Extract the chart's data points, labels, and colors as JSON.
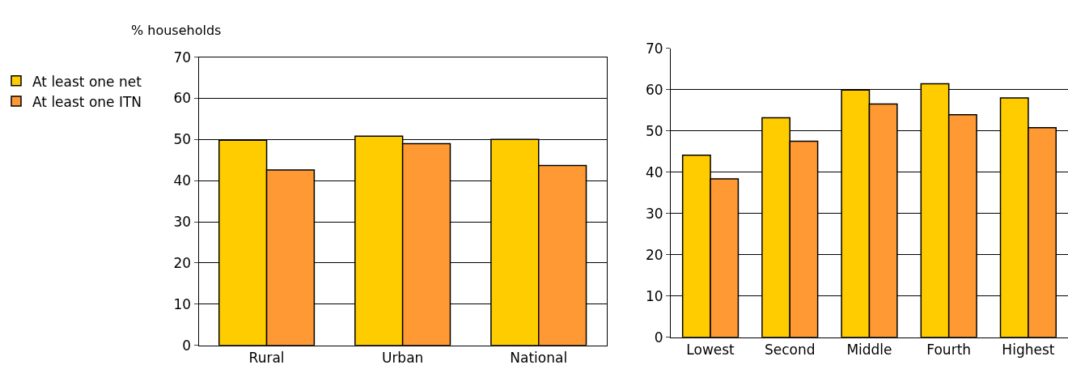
{
  "chart_data": [
    {
      "type": "bar",
      "ylabel": "% households",
      "categories": [
        "Rural",
        "Urban",
        "National"
      ],
      "series": [
        {
          "name": "At least one net",
          "color": "#ffcc00",
          "values": [
            49.8,
            50.8,
            50.0
          ]
        },
        {
          "name": "At least one ITN",
          "color": "#ff9933",
          "values": [
            42.6,
            49.0,
            43.7
          ]
        }
      ],
      "ylim": [
        0,
        70
      ],
      "yticks": [
        0,
        10,
        20,
        30,
        40,
        50,
        60,
        70
      ],
      "grid": "y",
      "legend": "left"
    },
    {
      "type": "bar",
      "categories": [
        "Lowest",
        "Second",
        "Middle",
        "Fourth",
        "Highest"
      ],
      "series": [
        {
          "color": "#ffcc00",
          "values": [
            44.1,
            53.2,
            59.9,
            61.4,
            58.0
          ]
        },
        {
          "color": "#ff9933",
          "values": [
            38.4,
            47.5,
            56.5,
            53.9,
            50.8
          ]
        }
      ],
      "ylim": [
        0,
        70
      ],
      "yticks": [
        0,
        10,
        20,
        30,
        40,
        50,
        60,
        70
      ],
      "grid": "y"
    }
  ]
}
